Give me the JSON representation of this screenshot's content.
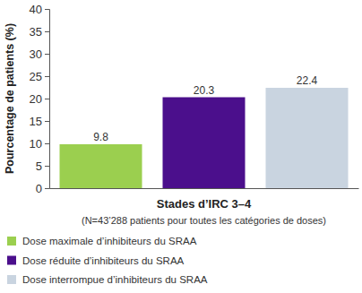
{
  "chart_data": {
    "type": "bar",
    "y_label": "Pourcentage de patients (%)",
    "x_label": null,
    "categories": [
      "Stades d’IRC 3–4"
    ],
    "annotations": [
      "(N=43’288 patients pour toutes les catégories de doses)"
    ],
    "series": [
      {
        "name": "Dose maximale d’inhibiteurs du SRAA",
        "color": "#9bcf4f",
        "values": [
          9.8
        ]
      },
      {
        "name": "Dose réduite d’inhibiteurs du SRAA",
        "color": "#4b0f8c",
        "values": [
          20.3
        ]
      },
      {
        "name": "Dose interrompue d’inhibiteurs du SRAA",
        "color": "#c9d4e0",
        "values": [
          22.4
        ]
      }
    ],
    "ylim": [
      0,
      40
    ],
    "yticks": [
      0,
      5,
      10,
      15,
      20,
      25,
      30,
      35,
      40
    ],
    "grid": false,
    "data_labels": true,
    "legend": "bottom"
  }
}
